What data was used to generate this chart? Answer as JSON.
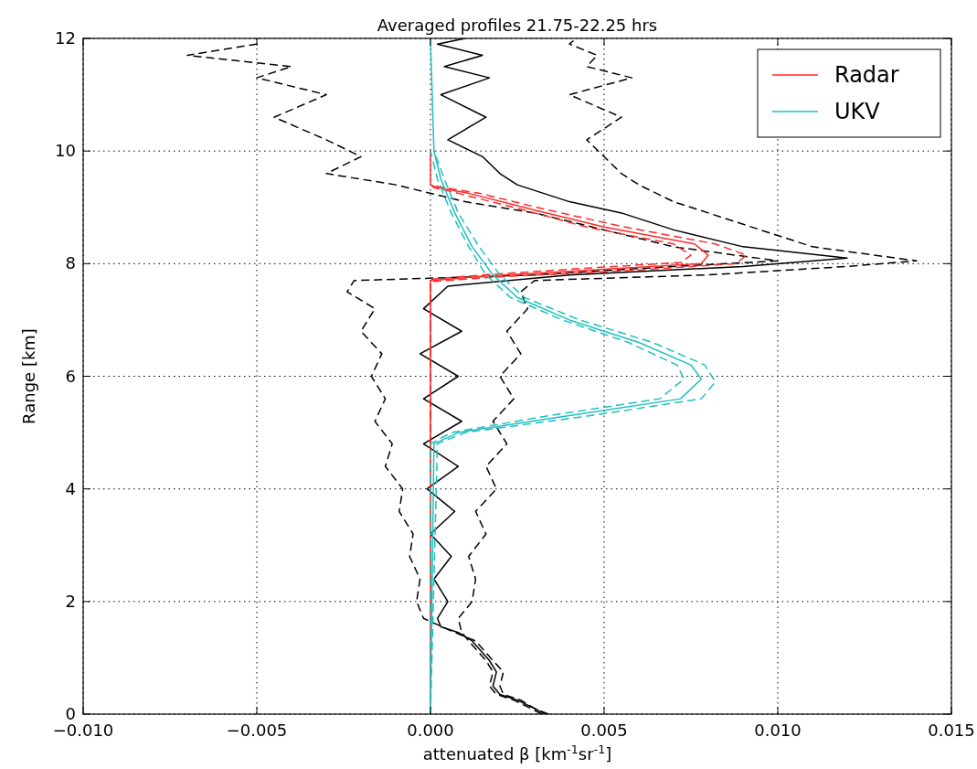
{
  "chart_data": {
    "type": "line",
    "title": "Averaged profiles 21.75-22.25 hrs",
    "xlabel": "attenuated β [km$^{-1}$sr$^{-1}$]",
    "ylabel": "Range [km]",
    "xlim": [
      -0.01,
      0.015
    ],
    "xticks": [
      {
        "value": -0.01,
        "label": "−0.010"
      },
      {
        "value": -0.005,
        "label": "−0.005"
      },
      {
        "value": 0,
        "label": "0.000"
      },
      {
        "value": 0.005,
        "label": "0.005"
      },
      {
        "value": 0.01,
        "label": "0.010"
      },
      {
        "value": 0.015,
        "label": "0.015"
      }
    ],
    "ylim": [
      0,
      12
    ],
    "yticks": [
      0,
      2,
      4,
      6,
      8,
      10,
      12
    ],
    "grid": true,
    "legend": "top right",
    "series": [
      {
        "color": "#000000",
        "line_style": "dashed",
        "x": [
          0.0034,
          0.003,
          0.0026,
          0.0021,
          0.002,
          0.0021,
          0.0018,
          0.0013,
          0.0007,
          -0.0002,
          -0.0004,
          -0.0003,
          -0.0006,
          -0.0005,
          -0.0009,
          -0.0008,
          -0.0013,
          -0.0011,
          -0.0016,
          -0.0013,
          -0.0017,
          -0.0014,
          -0.002,
          -0.0016,
          -0.0024,
          -0.0022,
          0.003,
          0.007,
          0.01,
          0.007,
          0.005,
          0.003,
          0.001,
          -0.001,
          -0.003,
          -0.002,
          -0.003,
          -0.0045,
          -0.003,
          -0.005,
          -0.004,
          -0.007,
          -0.005,
          -0.005
        ],
        "values": [
          0,
          0.1,
          0.25,
          0.35,
          0.5,
          0.75,
          0.95,
          1.3,
          1.45,
          1.7,
          2,
          2.4,
          2.8,
          3.2,
          3.6,
          4,
          4.4,
          4.8,
          5.2,
          5.6,
          6,
          6.4,
          6.8,
          7.2,
          7.5,
          7.7,
          7.8,
          7.95,
          8.05,
          8.3,
          8.6,
          8.9,
          9.1,
          9.4,
          9.6,
          9.9,
          10.2,
          10.6,
          11,
          11.3,
          11.5,
          11.7,
          11.9,
          12
        ]
      },
      {
        "color": "#000000",
        "line_style": "dashed",
        "x": [
          0.0032,
          0.0029,
          0.0024,
          0.0019,
          0.0017,
          0.0018,
          0.0016,
          0.0011,
          0.0009,
          0.0008,
          0.0012,
          0.0013,
          0.0011,
          0.0016,
          0.0013,
          0.0019,
          0.0016,
          0.0022,
          0.0018,
          0.0024,
          0.002,
          0.0026,
          0.0022,
          0.0028,
          0.0026,
          0.003,
          0.008,
          0.012,
          0.014,
          0.011,
          0.0095,
          0.008,
          0.007,
          0.006,
          0.0055,
          0.005,
          0.0045,
          0.0055,
          0.004,
          0.0058,
          0.0045,
          0.0048,
          0.004,
          0.0042
        ],
        "values": [
          0,
          0.1,
          0.25,
          0.35,
          0.5,
          0.75,
          0.95,
          1.3,
          1.45,
          1.7,
          2,
          2.4,
          2.8,
          3.2,
          3.6,
          4,
          4.4,
          4.8,
          5.2,
          5.6,
          6,
          6.4,
          6.8,
          7.2,
          7.5,
          7.7,
          7.8,
          7.95,
          8.05,
          8.3,
          8.6,
          8.9,
          9.1,
          9.4,
          9.6,
          9.9,
          10.2,
          10.6,
          11,
          11.3,
          11.5,
          11.7,
          11.9,
          12
        ]
      },
      {
        "color": "#000000",
        "line_style": "solid",
        "x": [
          0.0033,
          0.003,
          0.0025,
          0.002,
          0.0018,
          0.0019,
          0.0017,
          0.0012,
          0.0008,
          0.0003,
          0.0002,
          0.0005,
          0.0001,
          0.0006,
          0,
          0.0007,
          -0.0001,
          0.0008,
          -0.0002,
          0.0009,
          -0.0002,
          0.0008,
          -0.0003,
          0.0009,
          -0.0002,
          0.0005,
          0.004,
          0.009,
          0.012,
          0.009,
          0.007,
          0.0055,
          0.004,
          0.0025,
          0.002,
          0.0015,
          0.0005,
          0.0016,
          0.0003,
          0.0017,
          0.0004,
          0.0015,
          0.0002,
          0.001
        ],
        "values": [
          0,
          0.1,
          0.25,
          0.35,
          0.5,
          0.75,
          0.95,
          1.3,
          1.45,
          1.55,
          1.7,
          2,
          2.4,
          2.8,
          3.2,
          3.6,
          4,
          4.4,
          4.8,
          5.2,
          5.6,
          6,
          6.4,
          6.8,
          7.2,
          7.6,
          7.8,
          7.95,
          8.1,
          8.3,
          8.6,
          8.9,
          9.1,
          9.4,
          9.6,
          9.9,
          10.2,
          10.6,
          11,
          11.3,
          11.5,
          11.7,
          11.9,
          12
        ]
      },
      {
        "color": "#ff2a2a",
        "line_style": "dashed",
        "x": [
          0,
          0,
          0.0015,
          0.0045,
          0.0072,
          0.0075,
          0.007,
          0.0045,
          0.0027,
          0.0008,
          0.0001,
          0
        ],
        "values": [
          0,
          7.72,
          7.8,
          7.92,
          8.02,
          8.15,
          8.35,
          8.65,
          8.95,
          9.25,
          9.35,
          9.4
        ]
      },
      {
        "color": "#ff2a2a",
        "line_style": "dashed",
        "x": [
          0,
          0,
          0.0018,
          0.0058,
          0.0088,
          0.0091,
          0.0082,
          0.0056,
          0.0034,
          0.0014,
          0.0004,
          0
        ],
        "values": [
          0,
          7.68,
          7.76,
          7.88,
          8.0,
          8.15,
          8.35,
          8.65,
          8.95,
          9.25,
          9.35,
          9.4
        ]
      },
      {
        "name": "Radar",
        "color": "#ff2a2a",
        "line_style": "solid",
        "x": [
          0,
          0,
          0.0016,
          0.005,
          0.0078,
          0.008,
          0.0076,
          0.005,
          0.003,
          0.0011,
          0.0002,
          0,
          0
        ],
        "values": [
          0,
          7.7,
          7.78,
          7.9,
          8.0,
          8.15,
          8.35,
          8.65,
          8.95,
          9.25,
          9.35,
          9.4,
          10
        ]
      },
      {
        "color": "#1fbfbf",
        "line_style": "dashed",
        "x": [
          0,
          0,
          0.0006,
          0.0034,
          0.0066,
          0.0073,
          0.0071,
          0.0057,
          0.0038,
          0.0023,
          0.0016,
          0.0011,
          0.0006,
          0.0002,
          0
        ],
        "values": [
          0,
          4.8,
          5.0,
          5.3,
          5.6,
          5.95,
          6.2,
          6.6,
          7.0,
          7.4,
          7.8,
          8.3,
          8.9,
          9.5,
          10
        ]
      },
      {
        "color": "#1fbfbf",
        "line_style": "dashed",
        "x": [
          0,
          0.0002,
          0.001,
          0.0046,
          0.0078,
          0.0082,
          0.0079,
          0.0064,
          0.0043,
          0.0027,
          0.002,
          0.0014,
          0.0008,
          0.0004,
          0.0001
        ],
        "values": [
          0,
          4.8,
          5.0,
          5.3,
          5.6,
          5.9,
          6.2,
          6.6,
          7.0,
          7.4,
          7.8,
          8.3,
          8.9,
          9.5,
          10
        ]
      },
      {
        "name": "UKV",
        "color": "#1fbfbf",
        "line_style": "solid",
        "x": [
          0,
          0.0001,
          0.0008,
          0.004,
          0.0072,
          0.0078,
          0.0075,
          0.006,
          0.004,
          0.0025,
          0.0018,
          0.0012,
          0.0007,
          0.0003,
          0.0001,
          0
        ],
        "values": [
          0,
          4.8,
          5.0,
          5.3,
          5.6,
          5.95,
          6.2,
          6.6,
          7.0,
          7.4,
          7.8,
          8.3,
          8.9,
          9.5,
          10,
          12
        ]
      }
    ]
  }
}
